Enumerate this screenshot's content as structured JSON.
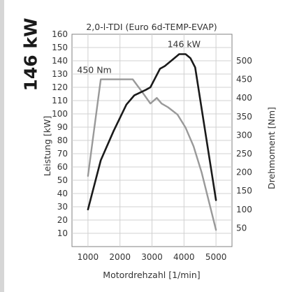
{
  "badge": "146 kW",
  "chart_data": {
    "type": "line",
    "title": "2,0-l-TDI (Euro 6d-TEMP-EVAP)",
    "xlabel": "Motordrehzahl [1/min]",
    "ylabel_left": "Leistung [kW]",
    "ylabel_right": "Drehmoment [Nm]",
    "xlim": [
      500,
      5500
    ],
    "ylim_left": [
      0,
      160
    ],
    "ylim_right": [
      0,
      571.4
    ],
    "xticks": [
      1000,
      2000,
      3000,
      4000,
      5000
    ],
    "yticks_left": [
      10,
      20,
      30,
      40,
      50,
      60,
      70,
      80,
      90,
      100,
      110,
      120,
      130,
      140,
      150,
      160
    ],
    "yticks_right": [
      50,
      100,
      150,
      200,
      250,
      300,
      350,
      400,
      450,
      500
    ],
    "grid": true,
    "series": [
      {
        "axis": "left",
        "color": "#1a1a1a",
        "x": [
          1000,
          1400,
          1800,
          2200,
          2450,
          2800,
          2950,
          3100,
          3250,
          3400,
          3650,
          3850,
          4050,
          4200,
          4350,
          5000
        ],
        "y": [
          28,
          65,
          87,
          107,
          114,
          118,
          120,
          127,
          134,
          136,
          141,
          145,
          145,
          142,
          135,
          35
        ]
      },
      {
        "axis": "right",
        "color": "#999999",
        "x": [
          1000,
          1400,
          1800,
          2100,
          2400,
          2700,
          2950,
          3150,
          3300,
          3500,
          3800,
          4050,
          4300,
          4550,
          5000
        ],
        "y": [
          190,
          450,
          450,
          450,
          450,
          415,
          385,
          400,
          385,
          375,
          355,
          320,
          270,
          200,
          45
        ]
      }
    ],
    "annotations": [
      {
        "text": "450 Nm",
        "x": 1200,
        "y": 450,
        "axis": "right"
      },
      {
        "text": "146 kW",
        "x": 4000,
        "y": 146,
        "axis": "left"
      }
    ]
  }
}
